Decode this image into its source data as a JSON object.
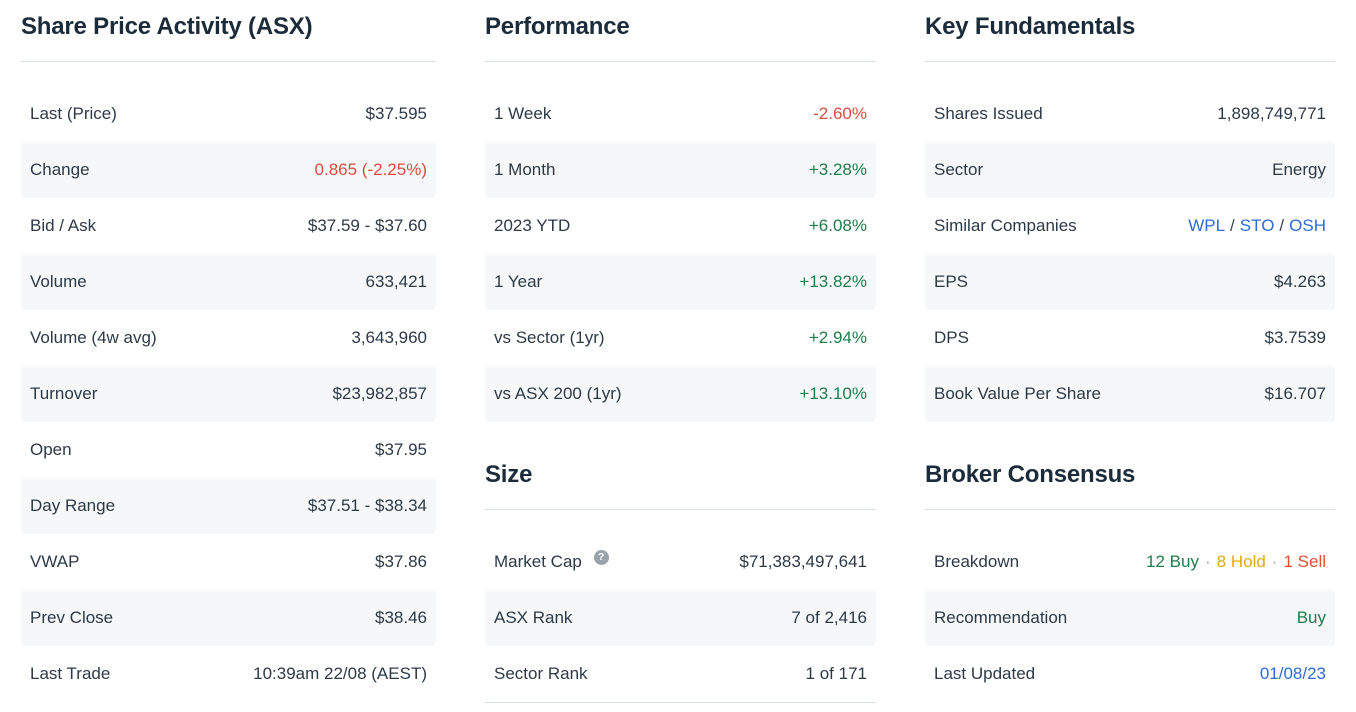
{
  "colors": {
    "heading": "#1c2b3a",
    "body_text": "#2c3a47",
    "negative": "#dc4c3f",
    "positive": "#1e7d4b",
    "link": "#2e6bd6",
    "hold": "#e3a90f",
    "sell": "#e14f2e",
    "row_stripe": "#f5f7f9",
    "divider": "#d9dee3"
  },
  "share_price": {
    "title": "Share Price Activity (ASX)",
    "rows": [
      {
        "label": "Last (Price)",
        "value": "$37.595"
      },
      {
        "label": "Change",
        "value": "0.865 (-2.25%)"
      },
      {
        "label": "Bid / Ask",
        "value": "$37.59 - $37.60"
      },
      {
        "label": "Volume",
        "value": "633,421"
      },
      {
        "label": "Volume (4w avg)",
        "value": "3,643,960"
      },
      {
        "label": "Turnover",
        "value": "$23,982,857"
      },
      {
        "label": "Open",
        "value": "$37.95"
      },
      {
        "label": "Day Range",
        "value": "$37.51 - $38.34"
      },
      {
        "label": "VWAP",
        "value": "$37.86"
      },
      {
        "label": "Prev Close",
        "value": "$38.46"
      },
      {
        "label": "Last Trade",
        "value": "10:39am 22/08 (AEST)"
      }
    ]
  },
  "performance": {
    "title": "Performance",
    "rows": [
      {
        "label": "1 Week",
        "value": "-2.60%"
      },
      {
        "label": "1 Month",
        "value": "+3.28%"
      },
      {
        "label": "2023 YTD",
        "value": "+6.08%"
      },
      {
        "label": "1 Year",
        "value": "+13.82%"
      },
      {
        "label": "vs Sector (1yr)",
        "value": "+2.94%"
      },
      {
        "label": "vs ASX 200 (1yr)",
        "value": "+13.10%"
      }
    ]
  },
  "size": {
    "title": "Size",
    "help_glyph": "?",
    "rows": [
      {
        "label": "Market Cap",
        "value": "$71,383,497,641"
      },
      {
        "label": "ASX Rank",
        "value": "7 of 2,416"
      },
      {
        "label": "Sector Rank",
        "value": "1 of 171"
      }
    ]
  },
  "fundamentals": {
    "title": "Key Fundamentals",
    "rows": [
      {
        "label": "Shares Issued",
        "value": "1,898,749,771"
      },
      {
        "label": "Sector",
        "value": "Energy"
      },
      {
        "label": "Similar Companies"
      },
      {
        "label": "EPS",
        "value": "$4.263"
      },
      {
        "label": "DPS",
        "value": "$3.7539"
      },
      {
        "label": "Book Value Per Share",
        "value": "$16.707"
      }
    ],
    "similar_companies": {
      "links": [
        "WPL",
        "STO",
        "OSH"
      ],
      "separator": "/"
    }
  },
  "broker": {
    "title": "Broker Consensus",
    "rows": [
      {
        "label": "Breakdown"
      },
      {
        "label": "Recommendation",
        "value": "Buy"
      },
      {
        "label": "Last Updated",
        "value": "01/08/23"
      }
    ],
    "breakdown": {
      "buy": "12 Buy",
      "hold": "8 Hold",
      "sell": "1 Sell",
      "separator": "·"
    }
  }
}
